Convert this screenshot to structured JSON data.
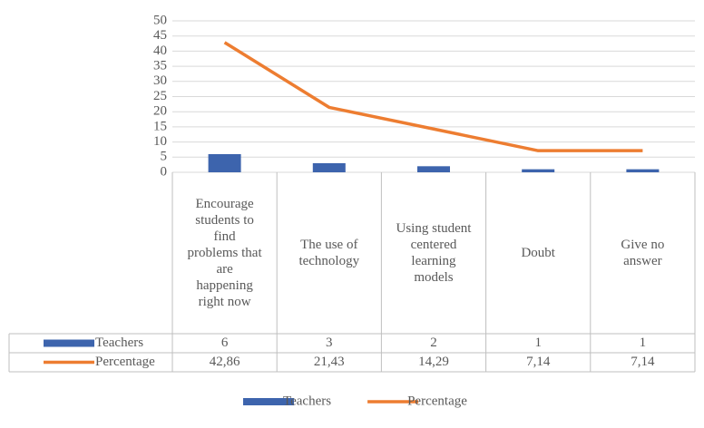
{
  "chart_data": {
    "type": "bar-line",
    "categories": [
      "Encourage students to find problems that are happening right now",
      "The use of technology",
      "Using student centered learning models",
      "Doubt",
      "Give no answer"
    ],
    "series": [
      {
        "name": "Teachers",
        "type": "bar",
        "color": "#3d64ad",
        "values": [
          6,
          3,
          2,
          1,
          1
        ]
      },
      {
        "name": "Percentage",
        "type": "line",
        "color": "#ed7d31",
        "values": [
          42.86,
          21.43,
          14.29,
          7.14,
          7.14
        ],
        "value_labels": [
          "42,86",
          "21,43",
          "14,29",
          "7,14",
          "7,14"
        ]
      }
    ],
    "ylim": [
      0,
      50
    ],
    "yticks": [
      0,
      5,
      10,
      15,
      20,
      25,
      30,
      35,
      40,
      45,
      50
    ],
    "grid": true,
    "legend": "bottom",
    "data_table": true
  }
}
